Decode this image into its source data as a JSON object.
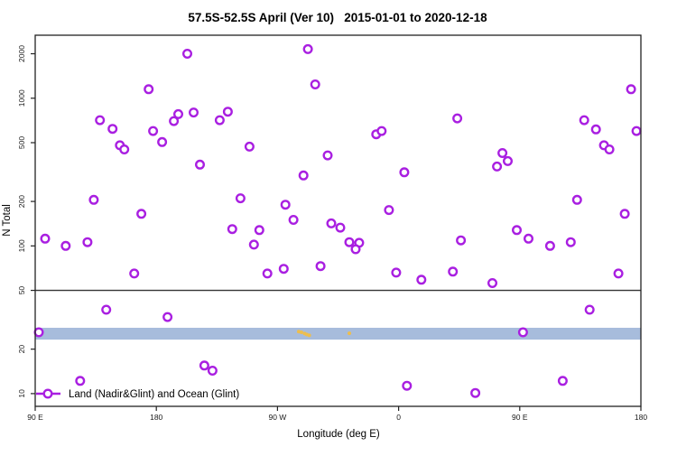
{
  "title": "57.5S-52.5S April (Ver 10)   2015-01-01 to 2020-12-18",
  "chart_data": {
    "type": "scatter",
    "title": "57.5S-52.5S April (Ver 10)   2015-01-01 to 2020-12-18",
    "xlabel": "Longitude (deg E)",
    "ylabel": "N Total",
    "grid": false,
    "x_axis": {
      "type": "linear",
      "plot_range": [
        90,
        540
      ],
      "note": "longitude plotted eastward from 90E wrapping through 180, 90W, 0, 90E to 180",
      "ticks": [
        {
          "pos": 90,
          "label": "90 E"
        },
        {
          "pos": 180,
          "label": "180"
        },
        {
          "pos": 270,
          "label": "90 W"
        },
        {
          "pos": 360,
          "label": "0"
        },
        {
          "pos": 450,
          "label": "90 E"
        },
        {
          "pos": 540,
          "label": "180"
        }
      ]
    },
    "y_axis": {
      "type": "log",
      "range": [
        8.2,
        2670
      ],
      "ticks": [
        10,
        20,
        50,
        100,
        200,
        500,
        1000,
        2000
      ]
    },
    "reference_line_y": 50,
    "highlight_band": {
      "y_from": 23.2,
      "y_to": 27.9,
      "color": "#a7bcdc"
    },
    "band_marks": {
      "color": "#edbe4e",
      "points": [
        [
          285.8,
          26.3
        ],
        [
          287.8,
          26.0
        ],
        [
          290.2,
          25.5
        ],
        [
          291.8,
          25.1
        ],
        [
          293.6,
          24.8
        ],
        [
          323.4,
          25.6
        ]
      ]
    },
    "legend": {
      "label": "Land (Nadir&Glint) and Ocean (Glint)",
      "position": "bottom-left",
      "marker": "open-circle-on-line"
    },
    "series": [
      {
        "name": "Land (Nadir&Glint) and Ocean (Glint)",
        "marker": "open-circle",
        "color": "#a91fe1",
        "points": [
          [
            203.0,
            2000
          ],
          [
            174.3,
            1150
          ],
          [
            138.1,
            710
          ],
          [
            147.5,
            620
          ],
          [
            152.9,
            480
          ],
          [
            156.2,
            450
          ],
          [
            177.6,
            600
          ],
          [
            184.3,
            505
          ],
          [
            193.0,
            700
          ],
          [
            196.3,
            780
          ],
          [
            207.7,
            800
          ],
          [
            227.1,
            710
          ],
          [
            233.1,
            810
          ],
          [
            212.4,
            355
          ],
          [
            133.5,
            205
          ],
          [
            168.9,
            165
          ],
          [
            292.6,
            2150
          ],
          [
            298.0,
            1240
          ],
          [
            343.4,
            570
          ],
          [
            347.4,
            600
          ],
          [
            249.2,
            470
          ],
          [
            307.3,
            410
          ],
          [
            289.3,
            300
          ],
          [
            364.2,
            315
          ],
          [
            242.5,
            210
          ],
          [
            275.9,
            190
          ],
          [
            281.9,
            150
          ],
          [
            310.0,
            142
          ],
          [
            352.8,
            175
          ],
          [
            256.5,
            128
          ],
          [
            252.5,
            102
          ],
          [
            316.7,
            133
          ],
          [
            323.4,
            106
          ],
          [
            330.7,
            105
          ],
          [
            328.1,
            95
          ],
          [
            302.0,
            73
          ],
          [
            262.5,
            65
          ],
          [
            274.6,
            70
          ],
          [
            358.2,
            66
          ],
          [
            376.9,
            59
          ],
          [
            366.2,
            11.3
          ],
          [
            97.4,
            112
          ],
          [
            112.7,
            100
          ],
          [
            128.8,
            106
          ],
          [
            236.4,
            130
          ],
          [
            163.6,
            65
          ],
          [
            142.8,
            37
          ],
          [
            188.3,
            33
          ],
          [
            92.7,
            26
          ],
          [
            215.7,
            15.5
          ],
          [
            221.7,
            14.3
          ],
          [
            123.4,
            12.2
          ],
          [
            532.7,
            1150
          ],
          [
            403.6,
            730
          ],
          [
            497.9,
            710
          ],
          [
            506.6,
            615
          ],
          [
            536.7,
            600
          ],
          [
            512.6,
            480
          ],
          [
            516.6,
            450
          ],
          [
            437.1,
            425
          ],
          [
            441.1,
            375
          ],
          [
            433.1,
            345
          ],
          [
            492.6,
            205
          ],
          [
            528.0,
            165
          ],
          [
            447.8,
            128
          ],
          [
            406.3,
            109
          ],
          [
            456.5,
            112
          ],
          [
            472.5,
            100
          ],
          [
            487.9,
            106
          ],
          [
            400.3,
            67
          ],
          [
            429.7,
            56
          ],
          [
            523.3,
            65
          ],
          [
            501.9,
            37
          ],
          [
            452.4,
            26
          ],
          [
            481.9,
            12.2
          ],
          [
            417.0,
            10.1
          ]
        ]
      }
    ]
  }
}
